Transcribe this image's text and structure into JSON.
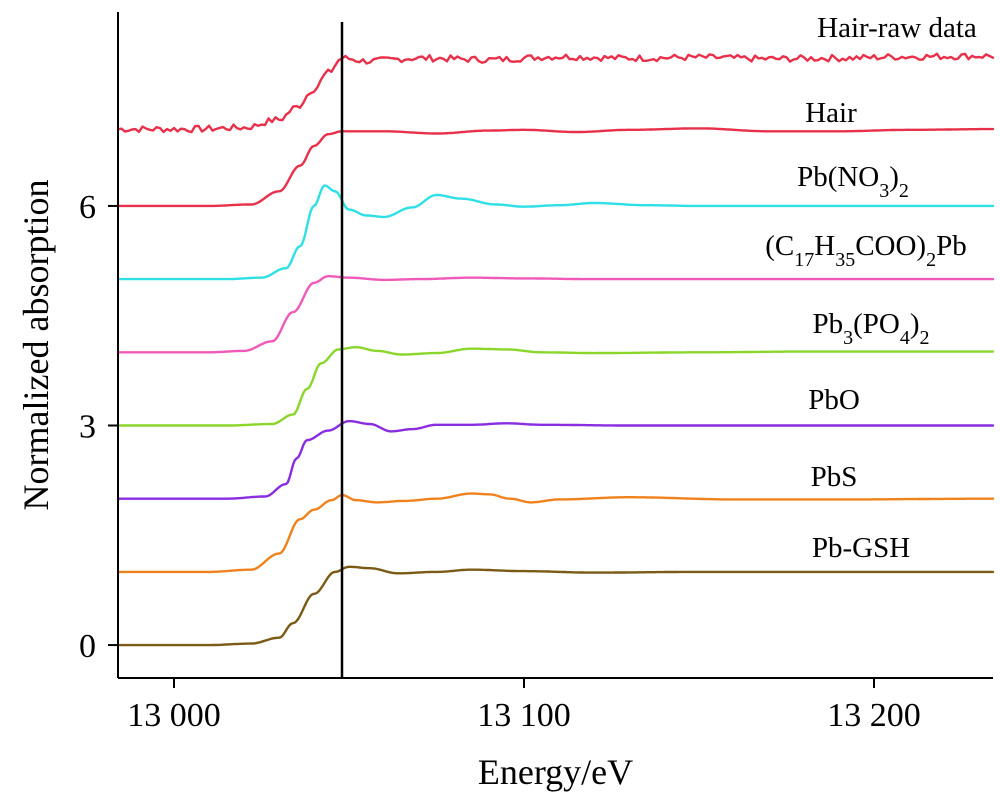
{
  "chart_data": {
    "type": "line",
    "title": "",
    "xlabel": "Energy/eV",
    "ylabel": "Normalized absorption",
    "xlim": [
      12984,
      13234
    ],
    "ylim": [
      -0.45,
      8.65
    ],
    "x_ticks": [
      {
        "value": 13000,
        "label": "13 000"
      },
      {
        "value": 13100,
        "label": "13 100"
      },
      {
        "value": 13200,
        "label": "13 200"
      }
    ],
    "y_ticks": [
      {
        "value": 0,
        "label": "0"
      },
      {
        "value": 3,
        "label": "3"
      },
      {
        "value": 6,
        "label": "6"
      }
    ],
    "reference_line_x": 13048,
    "grid": false,
    "legend": "inline labels above each curve",
    "series": [
      {
        "name": "Hair-raw data",
        "color": "#e8304a",
        "offset": 7.0,
        "noisy": true,
        "points": [
          [
            12984,
            0.05
          ],
          [
            13005,
            0.05
          ],
          [
            13020,
            0.07
          ],
          [
            13030,
            0.18
          ],
          [
            13035,
            0.35
          ],
          [
            13040,
            0.6
          ],
          [
            13044,
            0.82
          ],
          [
            13048,
            1.02
          ],
          [
            13055,
            0.98
          ],
          [
            13070,
            1.02
          ],
          [
            13090,
            1.0
          ],
          [
            13110,
            1.04
          ],
          [
            13130,
            1.02
          ],
          [
            13150,
            1.03
          ],
          [
            13170,
            1.01
          ],
          [
            13190,
            1.02
          ],
          [
            13210,
            1.04
          ],
          [
            13234,
            1.05
          ]
        ]
      },
      {
        "name": "Hair",
        "color": "#e8304a",
        "offset": 6.0,
        "points": [
          [
            12984,
            0.0
          ],
          [
            13010,
            0.0
          ],
          [
            13022,
            0.02
          ],
          [
            13030,
            0.2
          ],
          [
            13036,
            0.55
          ],
          [
            13040,
            0.82
          ],
          [
            13044,
            0.98
          ],
          [
            13048,
            1.02
          ],
          [
            13060,
            1.02
          ],
          [
            13075,
            0.99
          ],
          [
            13090,
            1.03
          ],
          [
            13100,
            1.04
          ],
          [
            13115,
            1.01
          ],
          [
            13130,
            1.04
          ],
          [
            13150,
            1.06
          ],
          [
            13170,
            1.02
          ],
          [
            13190,
            1.02
          ],
          [
            13210,
            1.04
          ],
          [
            13234,
            1.05
          ]
        ]
      },
      {
        "name": "Pb(NO3)2",
        "label_html": "Pb(NO<tspan baseline-shift='sub' font-size='20'>3</tspan>)<tspan baseline-shift='sub' font-size='20'>2</tspan>",
        "color": "#2ee0e6",
        "offset": 5.0,
        "points": [
          [
            12984,
            0.0
          ],
          [
            13015,
            0.0
          ],
          [
            13025,
            0.02
          ],
          [
            13032,
            0.15
          ],
          [
            13036,
            0.45
          ],
          [
            13040,
            1.0
          ],
          [
            13043,
            1.28
          ],
          [
            13046,
            1.2
          ],
          [
            13050,
            0.95
          ],
          [
            13055,
            0.87
          ],
          [
            13060,
            0.85
          ],
          [
            13068,
            0.98
          ],
          [
            13075,
            1.15
          ],
          [
            13082,
            1.1
          ],
          [
            13092,
            1.02
          ],
          [
            13100,
            0.99
          ],
          [
            13110,
            1.01
          ],
          [
            13120,
            1.04
          ],
          [
            13135,
            1.01
          ],
          [
            13150,
            1.0
          ],
          [
            13180,
            1.0
          ],
          [
            13234,
            1.0
          ]
        ]
      },
      {
        "name": "(C17H35COO)2Pb",
        "label_html": "(C<tspan baseline-shift='sub' font-size='20'>17</tspan>H<tspan baseline-shift='sub' font-size='20'>35</tspan>COO)<tspan baseline-shift='sub' font-size='20'>2</tspan>Pb",
        "color": "#ef59b8",
        "offset": 4.0,
        "points": [
          [
            12984,
            0.0
          ],
          [
            13010,
            0.0
          ],
          [
            13020,
            0.02
          ],
          [
            13028,
            0.15
          ],
          [
            13034,
            0.55
          ],
          [
            13040,
            0.95
          ],
          [
            13044,
            1.04
          ],
          [
            13050,
            1.02
          ],
          [
            13060,
            0.99
          ],
          [
            13070,
            1.0
          ],
          [
            13085,
            1.02
          ],
          [
            13100,
            1.01
          ],
          [
            13120,
            1.0
          ],
          [
            13150,
            1.0
          ],
          [
            13180,
            1.0
          ],
          [
            13234,
            1.0
          ]
        ]
      },
      {
        "name": "Pb3(PO4)2",
        "label_html": "Pb<tspan baseline-shift='sub' font-size='20'>3</tspan>(PO<tspan baseline-shift='sub' font-size='20'>4</tspan>)<tspan baseline-shift='sub' font-size='20'>2</tspan>",
        "color": "#8ad62a",
        "offset": 3.0,
        "points": [
          [
            12984,
            0.0
          ],
          [
            13015,
            0.0
          ],
          [
            13028,
            0.02
          ],
          [
            13034,
            0.15
          ],
          [
            13038,
            0.5
          ],
          [
            13042,
            0.85
          ],
          [
            13047,
            1.04
          ],
          [
            13052,
            1.07
          ],
          [
            13058,
            1.02
          ],
          [
            13065,
            0.97
          ],
          [
            13075,
            0.99
          ],
          [
            13085,
            1.05
          ],
          [
            13095,
            1.04
          ],
          [
            13105,
            1.0
          ],
          [
            13120,
            0.99
          ],
          [
            13150,
            1.0
          ],
          [
            13180,
            1.01
          ],
          [
            13234,
            1.01
          ]
        ]
      },
      {
        "name": "PbO",
        "color": "#8a2de0",
        "offset": 2.0,
        "points": [
          [
            12984,
            0.0
          ],
          [
            13015,
            0.0
          ],
          [
            13026,
            0.03
          ],
          [
            13032,
            0.2
          ],
          [
            13035,
            0.55
          ],
          [
            13038,
            0.8
          ],
          [
            13044,
            0.93
          ],
          [
            13050,
            1.06
          ],
          [
            13056,
            1.02
          ],
          [
            13062,
            0.92
          ],
          [
            13068,
            0.95
          ],
          [
            13075,
            1.01
          ],
          [
            13085,
            1.01
          ],
          [
            13095,
            1.03
          ],
          [
            13105,
            1.01
          ],
          [
            13130,
            1.0
          ],
          [
            13160,
            1.0
          ],
          [
            13234,
            1.0
          ]
        ]
      },
      {
        "name": "PbS",
        "color": "#f0821e",
        "offset": 1.0,
        "points": [
          [
            12984,
            0.0
          ],
          [
            13010,
            0.0
          ],
          [
            13022,
            0.03
          ],
          [
            13030,
            0.25
          ],
          [
            13036,
            0.72
          ],
          [
            13040,
            0.85
          ],
          [
            13045,
            0.98
          ],
          [
            13048,
            1.05
          ],
          [
            13052,
            0.98
          ],
          [
            13058,
            0.95
          ],
          [
            13066,
            0.97
          ],
          [
            13075,
            1.0
          ],
          [
            13085,
            1.07
          ],
          [
            13090,
            1.06
          ],
          [
            13096,
            1.0
          ],
          [
            13102,
            0.95
          ],
          [
            13110,
            0.99
          ],
          [
            13130,
            1.02
          ],
          [
            13160,
            0.99
          ],
          [
            13190,
            0.99
          ],
          [
            13234,
            1.0
          ]
        ]
      },
      {
        "name": "Pb-GSH",
        "color": "#7a5a14",
        "offset": 0.0,
        "points": [
          [
            12984,
            0.0
          ],
          [
            13010,
            0.0
          ],
          [
            13022,
            0.02
          ],
          [
            13030,
            0.1
          ],
          [
            13034,
            0.3
          ],
          [
            13040,
            0.7
          ],
          [
            13046,
            1.0
          ],
          [
            13050,
            1.07
          ],
          [
            13056,
            1.05
          ],
          [
            13064,
            0.98
          ],
          [
            13075,
            1.0
          ],
          [
            13085,
            1.03
          ],
          [
            13100,
            1.01
          ],
          [
            13120,
            0.99
          ],
          [
            13150,
            1.0
          ],
          [
            13180,
            1.0
          ],
          [
            13234,
            1.0
          ]
        ]
      }
    ]
  }
}
